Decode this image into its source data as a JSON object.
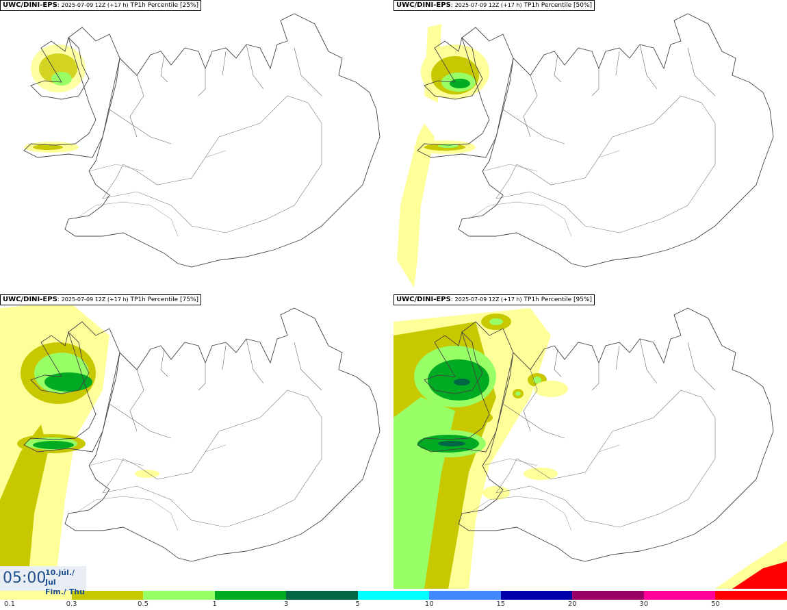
{
  "panels": [
    {
      "source": "UWC/DINI-EPS",
      "run": "2025-07-09 12Z (+17 h)",
      "param": "TP1h Percentile [25%]"
    },
    {
      "source": "UWC/DINI-EPS",
      "run": "2025-07-09 12Z (+17 h)",
      "param": "TP1h Percentile [50%]"
    },
    {
      "source": "UWC/DINI-EPS",
      "run": "2025-07-09 12Z (+17 h)",
      "param": "TP1h Percentile [75%]"
    },
    {
      "source": "UWC/DINI-EPS",
      "run": "2025-07-09 12Z (+17 h)",
      "param": "TP1h Percentile [95%]"
    }
  ],
  "valid_time": {
    "time": "05:00",
    "date_line1": "10.júl./ Jul",
    "date_line2": "Fim./ Thu"
  },
  "legend": {
    "colors": [
      "#ffff99",
      "#c8c800",
      "#99ff66",
      "#00aa22",
      "#006644",
      "#00ffff",
      "#4488ff",
      "#0000aa",
      "#990066",
      "#ff0099",
      "#ff0000"
    ],
    "labels": [
      "0.1",
      "0.3",
      "0.5",
      "1",
      "3",
      "5",
      "10",
      "15",
      "20",
      "30",
      "50"
    ]
  }
}
